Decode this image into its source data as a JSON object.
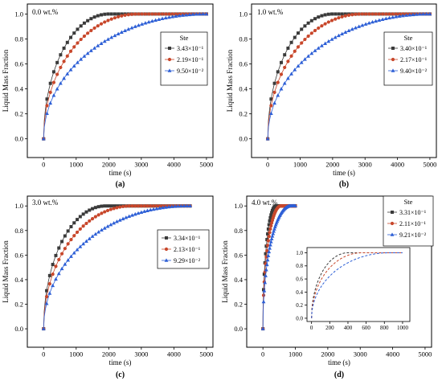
{
  "colors": {
    "series1": "#3a3a3a",
    "series2": "#c8472b",
    "series3": "#2d5fd6"
  },
  "chart_data": [
    {
      "type": "line",
      "panel_label": "(a)",
      "annotation": "0.0 wt.%",
      "xlabel": "time (s)",
      "ylabel": "Liquid Mass Fraction",
      "xlim": [
        -500,
        5200
      ],
      "ylim": [
        -0.15,
        1.08
      ],
      "xticks": [
        0,
        1000,
        2000,
        3000,
        4000,
        5000
      ],
      "xtick_labels": [
        "0",
        "1000",
        "2000",
        "3000",
        "4000",
        "5000"
      ],
      "yticks": [
        0.0,
        0.2,
        0.4,
        0.6,
        0.8,
        1.0
      ],
      "ytick_labels": [
        "0.0",
        "0.2",
        "0.4",
        "0.6",
        "0.8",
        "1.0"
      ],
      "legend_title": "Ste",
      "legend_position": "middle-right",
      "series": [
        {
          "name": "3.43×10⁻¹",
          "color": "#3a3a3a",
          "marker": "square",
          "t_end": 2000
        },
        {
          "name": "2.19×10⁻¹",
          "color": "#c8472b",
          "marker": "circle",
          "t_end": 2900
        },
        {
          "name": "9.50×10⁻²",
          "color": "#2d5fd6",
          "marker": "triangle",
          "t_end": 5000
        }
      ],
      "x_end": 5000
    },
    {
      "type": "line",
      "panel_label": "(b)",
      "annotation": "1.0 wt.%",
      "xlabel": "time (s)",
      "ylabel": "Liquid Mass Fraction",
      "xlim": [
        -500,
        5200
      ],
      "ylim": [
        -0.15,
        1.08
      ],
      "xticks": [
        0,
        1000,
        2000,
        3000,
        4000,
        5000
      ],
      "xtick_labels": [
        "0",
        "1000",
        "2000",
        "3000",
        "4000",
        "5000"
      ],
      "yticks": [
        0.0,
        0.2,
        0.4,
        0.6,
        0.8,
        1.0
      ],
      "ytick_labels": [
        "0.0",
        "0.2",
        "0.4",
        "0.6",
        "0.8",
        "1.0"
      ],
      "legend_title": "Ste",
      "legend_position": "middle-right",
      "series": [
        {
          "name": "3.40×10⁻¹",
          "color": "#3a3a3a",
          "marker": "square",
          "t_end": 2000
        },
        {
          "name": "2.17×10⁻¹",
          "color": "#c8472b",
          "marker": "circle",
          "t_end": 2900
        },
        {
          "name": "9.40×10⁻²",
          "color": "#2d5fd6",
          "marker": "triangle",
          "t_end": 5000
        }
      ],
      "x_end": 5000
    },
    {
      "type": "line",
      "panel_label": "(c)",
      "annotation": "3.0 wt.%",
      "xlabel": "time (s)",
      "ylabel": "Liquid Mass Fraction",
      "xlim": [
        -500,
        5200
      ],
      "ylim": [
        -0.15,
        1.08
      ],
      "xticks": [
        0,
        1000,
        2000,
        3000,
        4000,
        5000
      ],
      "xtick_labels": [
        "0",
        "1000",
        "2000",
        "3000",
        "4000",
        "5000"
      ],
      "yticks": [
        0.0,
        0.2,
        0.4,
        0.6,
        0.8,
        1.0
      ],
      "ytick_labels": [
        "0.0",
        "0.2",
        "0.4",
        "0.6",
        "0.8",
        "1.0"
      ],
      "legend_title": "",
      "legend_position": "middle-right",
      "series": [
        {
          "name": "3.34×10⁻¹",
          "color": "#3a3a3a",
          "marker": "square",
          "t_end": 1900
        },
        {
          "name": "2.13×10⁻¹",
          "color": "#c8472b",
          "marker": "circle",
          "t_end": 2700
        },
        {
          "name": "9.29×10⁻²",
          "color": "#2d5fd6",
          "marker": "triangle",
          "t_end": 4400
        }
      ],
      "x_end": 4500
    },
    {
      "type": "line",
      "panel_label": "(d)",
      "annotation": "4.0 wt.%",
      "xlabel": "time (s)",
      "ylabel": "Liquid Mass Fraction",
      "xlim": [
        -500,
        5200
      ],
      "ylim": [
        -0.15,
        1.08
      ],
      "xticks": [
        0,
        1000,
        2000,
        3000,
        4000,
        5000
      ],
      "xtick_labels": [
        "0",
        "1000",
        "2000",
        "3000",
        "4000",
        "5000"
      ],
      "yticks": [
        0.0,
        0.2,
        0.4,
        0.6,
        0.8,
        1.0
      ],
      "ytick_labels": [
        "0.0",
        "0.2",
        "0.4",
        "0.6",
        "0.8",
        "1.0"
      ],
      "legend_title": "Ste",
      "legend_position": "top-right",
      "series": [
        {
          "name": "3.31×10⁻¹",
          "color": "#3a3a3a",
          "marker": "square",
          "t_end": 400
        },
        {
          "name": "2.11×10⁻¹",
          "color": "#c8472b",
          "marker": "circle",
          "t_end": 550
        },
        {
          "name": "9.21×10⁻²",
          "color": "#2d5fd6",
          "marker": "triangle",
          "t_end": 850
        }
      ],
      "x_end": 1000,
      "inset": {
        "xlim": [
          -50,
          1080
        ],
        "ylim": [
          -0.05,
          1.08
        ],
        "xticks": [
          0,
          200,
          400,
          600,
          800,
          1000
        ],
        "xtick_labels": [
          "0",
          "200",
          "400",
          "600",
          "800",
          "1000"
        ],
        "yticks": [
          0.0,
          0.2,
          0.4,
          0.6,
          0.8,
          1.0
        ],
        "ytick_labels": [
          "0.0",
          "0.2",
          "0.4",
          "0.6",
          "0.8",
          "1.0"
        ],
        "x_end": 1000,
        "line_style": "dashed"
      }
    }
  ]
}
